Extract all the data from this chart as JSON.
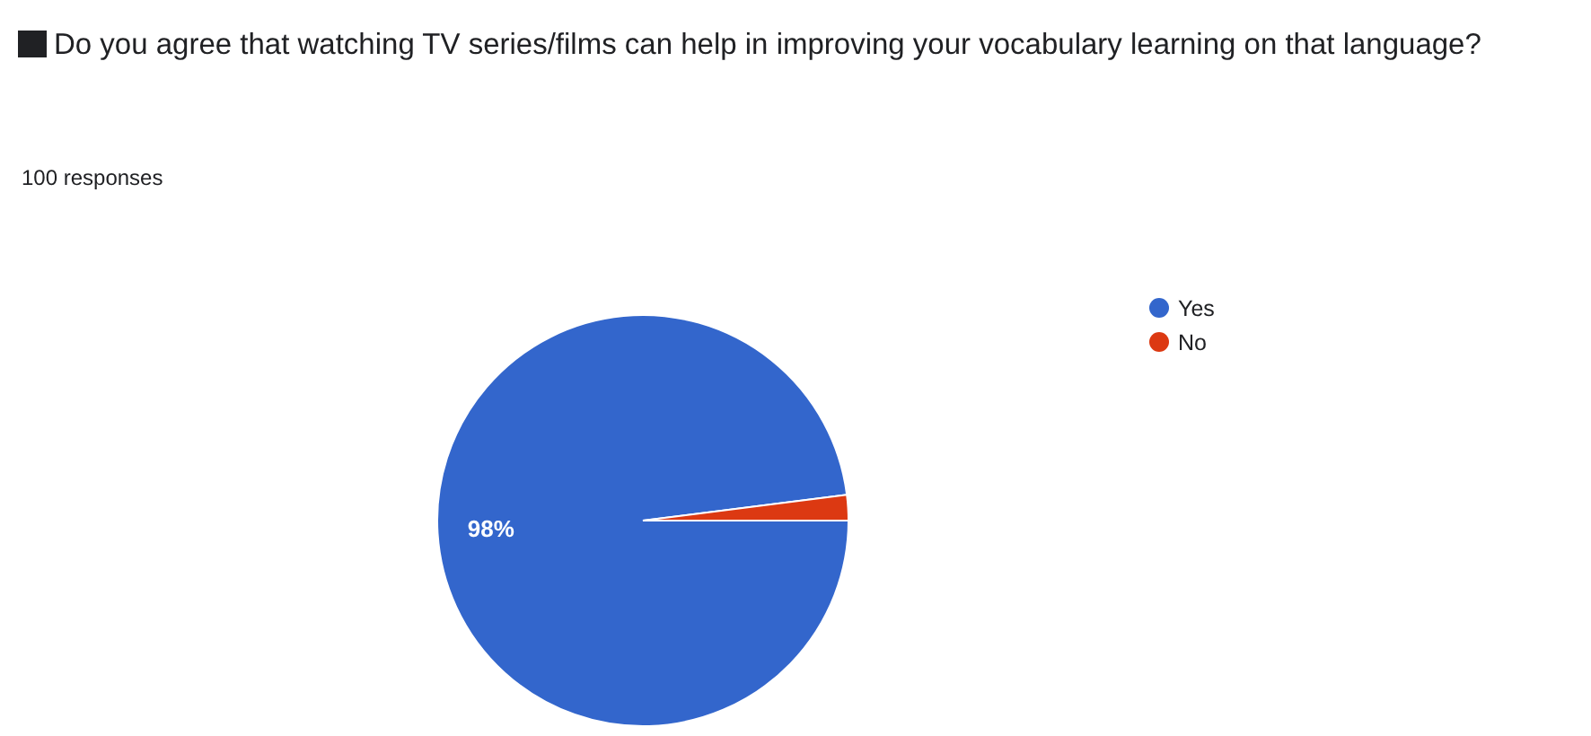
{
  "chart_data": {
    "type": "pie",
    "title": "Do you agree that watching TV series/films can help in improving your vocabulary learning on that language?",
    "subtitle": "100 responses",
    "categories": [
      "Yes",
      "No"
    ],
    "values": [
      98,
      2
    ],
    "colors": [
      "#3366cc",
      "#dc3912"
    ],
    "value_labels": [
      "98%",
      null
    ],
    "legend": "top right"
  }
}
